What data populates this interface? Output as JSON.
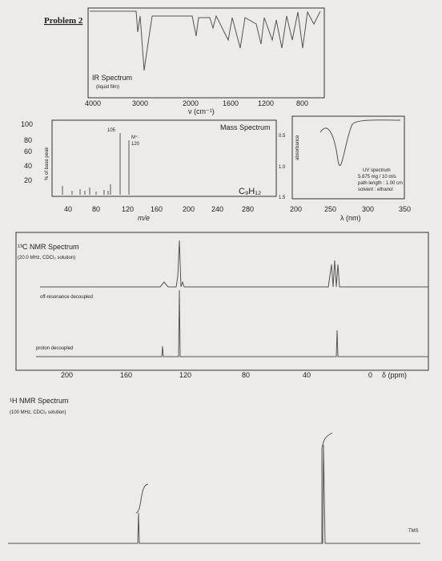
{
  "header": {
    "title": "Problem 2"
  },
  "ir": {
    "title": "IR Spectrum",
    "note": "(liquid film)",
    "ticks": [
      "4000",
      "3000",
      "2000",
      "1600",
      "1200",
      "800"
    ],
    "axis_label": "ν (cm⁻¹)"
  },
  "mass": {
    "title": "Mass Spectrum",
    "y_label": "% of base peak",
    "yticks": [
      "100",
      "80",
      "60",
      "40",
      "20"
    ],
    "xticks": [
      "40",
      "80",
      "120",
      "160",
      "200",
      "240",
      "280"
    ],
    "x_label": "m/e",
    "peak_base": "105",
    "peak_molecular": "M⁺·",
    "peak_molecular_mass": "120",
    "formula": "C₉H₁₂"
  },
  "uv": {
    "y_label": "absorbance",
    "yticks": [
      "0.5",
      "1.0",
      "1.5"
    ],
    "xticks": [
      "200",
      "250",
      "300",
      "350"
    ],
    "x_label": "λ (nm)",
    "notes": [
      "UV spectrum",
      "5.875 mg / 10 mls",
      "path length : 1.00 cm",
      "solvent : ethanol"
    ]
  },
  "c13": {
    "title": "¹³C NMR Spectrum",
    "subtitle": "(20.0 MHz, CDCl₃ solution)",
    "off_resonance": "off-resonance decoupled",
    "proton_decoupled": "proton decoupled",
    "xticks": [
      "200",
      "160",
      "120",
      "80",
      "40",
      "0"
    ],
    "unit": "δ (ppm)"
  },
  "h1": {
    "title": "¹H NMR Spectrum",
    "subtitle": "(100 MHz, CDCl₃ solution)",
    "tms": "TMS"
  }
}
